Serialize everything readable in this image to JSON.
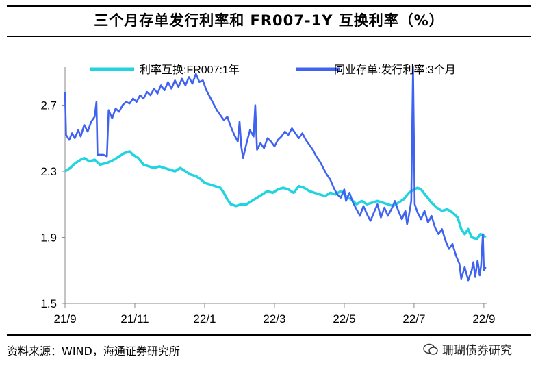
{
  "title": "三个月存单发行利率和 FR007-1Y 互换利率（%）",
  "source": "资料来源：WIND，海通证券研究所",
  "watermark": "珊瑚债券研究",
  "colors": {
    "fr007": "#22D3E0",
    "ncd": "#3F63F0"
  },
  "chart_data": {
    "type": "line",
    "title": "三个月存单发行利率和 FR007-1Y 互换利率（%）",
    "xlabel": "",
    "ylabel": "",
    "x_ticks": [
      "21/9",
      "21/11",
      "22/1",
      "22/3",
      "22/5",
      "22/7",
      "22/9"
    ],
    "x_tick_months": [
      0,
      2,
      4,
      6,
      8,
      10,
      12
    ],
    "x_range_months": [
      0,
      12.1
    ],
    "y_ticks": [
      1.5,
      1.9,
      2.3,
      2.7
    ],
    "ylim": [
      1.5,
      2.93
    ],
    "legend_position": "top",
    "series": [
      {
        "name": "利率互换:FR007:1年",
        "color": "#22D3E0",
        "points": [
          [
            0.0,
            2.3
          ],
          [
            0.15,
            2.32
          ],
          [
            0.3,
            2.35
          ],
          [
            0.45,
            2.37
          ],
          [
            0.55,
            2.38
          ],
          [
            0.7,
            2.36
          ],
          [
            0.85,
            2.37
          ],
          [
            1.0,
            2.34
          ],
          [
            1.2,
            2.35
          ],
          [
            1.4,
            2.37
          ],
          [
            1.55,
            2.39
          ],
          [
            1.7,
            2.41
          ],
          [
            1.85,
            2.42
          ],
          [
            1.95,
            2.4
          ],
          [
            2.1,
            2.38
          ],
          [
            2.25,
            2.34
          ],
          [
            2.4,
            2.33
          ],
          [
            2.55,
            2.32
          ],
          [
            2.7,
            2.33
          ],
          [
            2.85,
            2.32
          ],
          [
            3.0,
            2.31
          ],
          [
            3.15,
            2.3
          ],
          [
            3.3,
            2.32
          ],
          [
            3.45,
            2.3
          ],
          [
            3.6,
            2.28
          ],
          [
            3.75,
            2.27
          ],
          [
            3.9,
            2.25
          ],
          [
            4.0,
            2.23
          ],
          [
            4.15,
            2.22
          ],
          [
            4.3,
            2.21
          ],
          [
            4.45,
            2.2
          ],
          [
            4.55,
            2.17
          ],
          [
            4.65,
            2.13
          ],
          [
            4.75,
            2.1
          ],
          [
            4.9,
            2.09
          ],
          [
            5.05,
            2.1
          ],
          [
            5.2,
            2.1
          ],
          [
            5.35,
            2.12
          ],
          [
            5.5,
            2.14
          ],
          [
            5.65,
            2.16
          ],
          [
            5.8,
            2.18
          ],
          [
            5.95,
            2.17
          ],
          [
            6.1,
            2.19
          ],
          [
            6.25,
            2.2
          ],
          [
            6.4,
            2.19
          ],
          [
            6.55,
            2.17
          ],
          [
            6.7,
            2.21
          ],
          [
            6.85,
            2.2
          ],
          [
            7.0,
            2.18
          ],
          [
            7.15,
            2.17
          ],
          [
            7.3,
            2.16
          ],
          [
            7.45,
            2.15
          ],
          [
            7.6,
            2.17
          ],
          [
            7.75,
            2.16
          ],
          [
            7.9,
            2.18
          ],
          [
            8.05,
            2.15
          ],
          [
            8.2,
            2.13
          ],
          [
            8.35,
            2.1
          ],
          [
            8.5,
            2.12
          ],
          [
            8.65,
            2.1
          ],
          [
            8.8,
            2.11
          ],
          [
            8.95,
            2.12
          ],
          [
            9.1,
            2.11
          ],
          [
            9.25,
            2.1
          ],
          [
            9.4,
            2.09
          ],
          [
            9.55,
            2.11
          ],
          [
            9.7,
            2.13
          ],
          [
            9.85,
            2.17
          ],
          [
            10.0,
            2.19
          ],
          [
            10.1,
            2.2
          ],
          [
            10.2,
            2.19
          ],
          [
            10.35,
            2.15
          ],
          [
            10.5,
            2.11
          ],
          [
            10.65,
            2.08
          ],
          [
            10.8,
            2.06
          ],
          [
            10.95,
            2.07
          ],
          [
            11.1,
            2.05
          ],
          [
            11.25,
            2.02
          ],
          [
            11.35,
            1.95
          ],
          [
            11.45,
            1.92
          ],
          [
            11.55,
            1.95
          ],
          [
            11.65,
            1.9
          ],
          [
            11.8,
            1.89
          ],
          [
            11.9,
            1.92
          ],
          [
            12.0,
            1.91
          ],
          [
            12.05,
            1.9
          ]
        ]
      },
      {
        "name": "同业存单:发行利率:3个月",
        "color": "#3F63F0",
        "points": [
          [
            0.0,
            2.78
          ],
          [
            0.03,
            2.52
          ],
          [
            0.12,
            2.49
          ],
          [
            0.2,
            2.53
          ],
          [
            0.28,
            2.5
          ],
          [
            0.38,
            2.55
          ],
          [
            0.45,
            2.51
          ],
          [
            0.55,
            2.58
          ],
          [
            0.65,
            2.54
          ],
          [
            0.75,
            2.6
          ],
          [
            0.85,
            2.63
          ],
          [
            0.9,
            2.72
          ],
          [
            0.93,
            2.4
          ],
          [
            1.1,
            2.4
          ],
          [
            1.2,
            2.39
          ],
          [
            1.25,
            2.67
          ],
          [
            1.35,
            2.62
          ],
          [
            1.45,
            2.68
          ],
          [
            1.55,
            2.66
          ],
          [
            1.65,
            2.7
          ],
          [
            1.75,
            2.72
          ],
          [
            1.85,
            2.71
          ],
          [
            1.95,
            2.74
          ],
          [
            2.05,
            2.72
          ],
          [
            2.15,
            2.76
          ],
          [
            2.25,
            2.74
          ],
          [
            2.35,
            2.78
          ],
          [
            2.45,
            2.76
          ],
          [
            2.55,
            2.8
          ],
          [
            2.65,
            2.77
          ],
          [
            2.75,
            2.82
          ],
          [
            2.85,
            2.79
          ],
          [
            2.95,
            2.84
          ],
          [
            3.05,
            2.8
          ],
          [
            3.15,
            2.85
          ],
          [
            3.25,
            2.81
          ],
          [
            3.35,
            2.86
          ],
          [
            3.45,
            2.82
          ],
          [
            3.55,
            2.87
          ],
          [
            3.65,
            2.83
          ],
          [
            3.75,
            2.89
          ],
          [
            3.85,
            2.84
          ],
          [
            3.95,
            2.85
          ],
          [
            4.05,
            2.79
          ],
          [
            4.15,
            2.75
          ],
          [
            4.25,
            2.71
          ],
          [
            4.35,
            2.67
          ],
          [
            4.45,
            2.64
          ],
          [
            4.55,
            2.61
          ],
          [
            4.65,
            2.63
          ],
          [
            4.75,
            2.57
          ],
          [
            4.85,
            2.52
          ],
          [
            4.95,
            2.48
          ],
          [
            5.0,
            2.6
          ],
          [
            5.05,
            2.45
          ],
          [
            5.1,
            2.38
          ],
          [
            5.2,
            2.47
          ],
          [
            5.3,
            2.55
          ],
          [
            5.4,
            2.51
          ],
          [
            5.45,
            2.7
          ],
          [
            5.5,
            2.43
          ],
          [
            5.6,
            2.47
          ],
          [
            5.7,
            2.44
          ],
          [
            5.8,
            2.5
          ],
          [
            5.9,
            2.48
          ],
          [
            6.0,
            2.45
          ],
          [
            6.1,
            2.49
          ],
          [
            6.2,
            2.51
          ],
          [
            6.3,
            2.54
          ],
          [
            6.4,
            2.52
          ],
          [
            6.5,
            2.56
          ],
          [
            6.6,
            2.53
          ],
          [
            6.7,
            2.5
          ],
          [
            6.8,
            2.53
          ],
          [
            6.9,
            2.49
          ],
          [
            7.0,
            2.46
          ],
          [
            7.1,
            2.43
          ],
          [
            7.2,
            2.39
          ],
          [
            7.3,
            2.36
          ],
          [
            7.4,
            2.32
          ],
          [
            7.5,
            2.28
          ],
          [
            7.6,
            2.25
          ],
          [
            7.7,
            2.2
          ],
          [
            7.8,
            2.16
          ],
          [
            7.9,
            2.14
          ],
          [
            8.0,
            2.19
          ],
          [
            8.05,
            2.12
          ],
          [
            8.15,
            2.17
          ],
          [
            8.25,
            2.11
          ],
          [
            8.35,
            2.07
          ],
          [
            8.45,
            2.03
          ],
          [
            8.55,
            2.09
          ],
          [
            8.65,
            2.04
          ],
          [
            8.75,
            2.0
          ],
          [
            8.85,
            2.05
          ],
          [
            8.95,
            2.1
          ],
          [
            9.05,
            2.02
          ],
          [
            9.15,
            2.08
          ],
          [
            9.25,
            2.03
          ],
          [
            9.35,
            2.07
          ],
          [
            9.45,
            2.12
          ],
          [
            9.55,
            2.06
          ],
          [
            9.65,
            2.01
          ],
          [
            9.75,
            2.06
          ],
          [
            9.8,
            1.98
          ],
          [
            9.85,
            2.03
          ],
          [
            9.92,
            2.12
          ],
          [
            9.97,
            2.93
          ],
          [
            10.02,
            2.1
          ],
          [
            10.1,
            2.05
          ],
          [
            10.2,
            2.01
          ],
          [
            10.3,
            2.06
          ],
          [
            10.4,
            1.99
          ],
          [
            10.5,
            2.03
          ],
          [
            10.6,
            1.96
          ],
          [
            10.7,
            1.92
          ],
          [
            10.8,
            1.95
          ],
          [
            10.9,
            1.88
          ],
          [
            11.0,
            1.83
          ],
          [
            11.1,
            1.86
          ],
          [
            11.2,
            1.79
          ],
          [
            11.3,
            1.74
          ],
          [
            11.35,
            1.65
          ],
          [
            11.45,
            1.72
          ],
          [
            11.55,
            1.64
          ],
          [
            11.65,
            1.7
          ],
          [
            11.7,
            1.75
          ],
          [
            11.75,
            1.66
          ],
          [
            11.82,
            1.76
          ],
          [
            11.88,
            1.67
          ],
          [
            11.92,
            1.73
          ],
          [
            11.97,
            1.92
          ],
          [
            12.0,
            1.7
          ],
          [
            12.05,
            1.72
          ]
        ]
      }
    ]
  }
}
